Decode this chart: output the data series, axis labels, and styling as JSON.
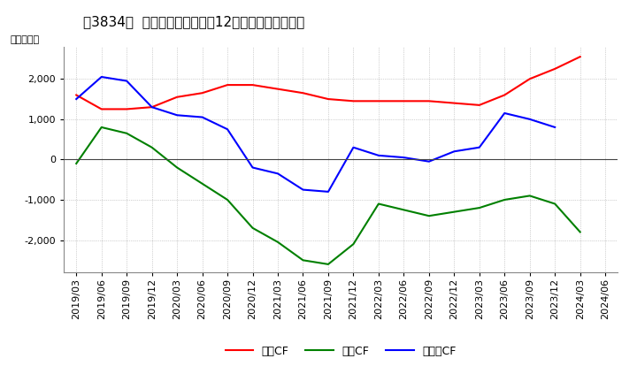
{
  "title": "［3834］  キャッシュフローの12か月移動合計の推移",
  "ylabel": "（百万円）",
  "background_color": "#ffffff",
  "grid_color": "#aaaaaa",
  "x_labels": [
    "2019/03",
    "2019/06",
    "2019/09",
    "2019/12",
    "2020/03",
    "2020/06",
    "2020/09",
    "2020/12",
    "2021/03",
    "2021/06",
    "2021/09",
    "2021/12",
    "2022/03",
    "2022/06",
    "2022/09",
    "2022/12",
    "2023/03",
    "2023/06",
    "2023/09",
    "2023/12",
    "2024/03",
    "2024/06"
  ],
  "series": {
    "営業CF": {
      "color": "#ff0000",
      "values": [
        1600,
        1250,
        1250,
        1300,
        1550,
        1650,
        1850,
        1850,
        1750,
        1650,
        1500,
        1450,
        1450,
        1450,
        1450,
        1400,
        1350,
        1600,
        2000,
        2250,
        2550,
        null
      ]
    },
    "投資CF": {
      "color": "#008000",
      "values": [
        -100,
        800,
        650,
        300,
        -200,
        -600,
        -1000,
        -1700,
        -2050,
        -2500,
        -2600,
        -2100,
        -1100,
        -1250,
        -1400,
        -1300,
        -1200,
        -1000,
        -900,
        -1100,
        -1800,
        null
      ]
    },
    "フリーCF": {
      "color": "#0000ff",
      "values": [
        1500,
        2050,
        1950,
        1300,
        1100,
        1050,
        750,
        -200,
        -350,
        -750,
        -800,
        300,
        100,
        50,
        -50,
        200,
        300,
        1150,
        1000,
        800,
        null,
        null
      ]
    }
  },
  "ylim": [
    -2800,
    2800
  ],
  "yticks": [
    -2000,
    -1000,
    0,
    1000,
    2000
  ],
  "title_fontsize": 11,
  "axis_fontsize": 8,
  "legend_fontsize": 9
}
